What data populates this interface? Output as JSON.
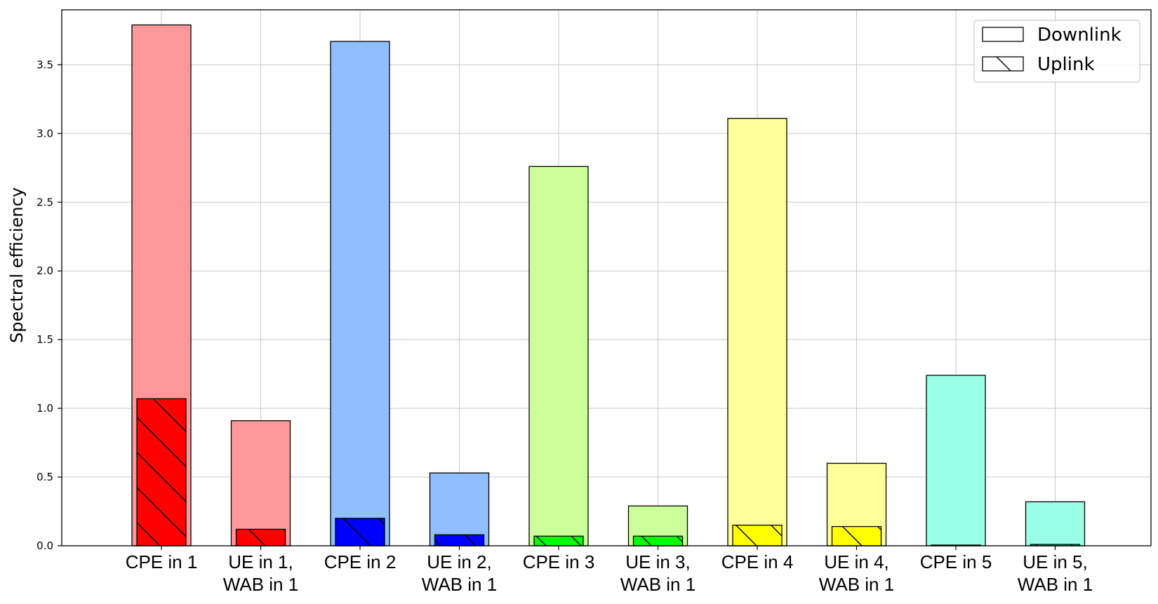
{
  "chart_data": {
    "type": "bar",
    "title": "",
    "xlabel": "",
    "ylabel": "Spectral efficiency",
    "ylim": [
      0,
      3.9
    ],
    "yticks": [
      0.0,
      0.5,
      1.0,
      1.5,
      2.0,
      2.5,
      3.0,
      3.5
    ],
    "grid": true,
    "legend_position": "top-right",
    "categories": [
      [
        "CPE in 1"
      ],
      [
        "UE in 1,",
        "WAB in 1"
      ],
      [
        "CPE in 2"
      ],
      [
        "UE in 2,",
        "WAB in 1"
      ],
      [
        "CPE in 3"
      ],
      [
        "UE in 3,",
        "WAB in 1"
      ],
      [
        "CPE in 4"
      ],
      [
        "UE in 4,",
        "WAB in 1"
      ],
      [
        "CPE in 5"
      ],
      [
        "UE in 5,",
        "WAB in 1"
      ]
    ],
    "series": [
      {
        "name": "Downlink",
        "hatch": "none",
        "values": [
          3.79,
          0.91,
          3.67,
          0.53,
          2.76,
          0.29,
          3.11,
          0.6,
          1.24,
          0.32
        ],
        "colors": [
          "#ff9999",
          "#ff9999",
          "#8fbfff",
          "#8fbfff",
          "#ccff99",
          "#ccff99",
          "#ffff99",
          "#ffff99",
          "#99ffe5",
          "#99ffe5"
        ]
      },
      {
        "name": "Uplink",
        "hatch": "diagonal",
        "values": [
          1.07,
          0.12,
          0.2,
          0.08,
          0.07,
          0.07,
          0.15,
          0.14,
          0.005,
          0.01
        ],
        "colors": [
          "#ff0000",
          "#ff0000",
          "#0000ff",
          "#0000ff",
          "#00ff00",
          "#00ff00",
          "#ffff00",
          "#ffff00",
          "#00ffbb",
          "#00ffbb"
        ]
      }
    ]
  }
}
